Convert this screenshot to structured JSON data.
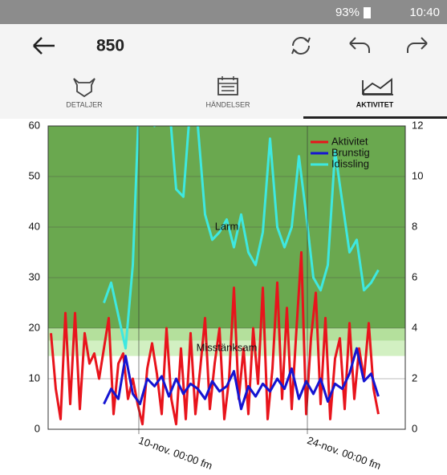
{
  "status": {
    "battery": "93%",
    "time": "10:40"
  },
  "toolbar": {
    "title": "850"
  },
  "tabs": [
    "DETALJER",
    "HÄNDELSER",
    "AKTIVITET"
  ],
  "chart_data": {
    "type": "line",
    "xlim": [
      2.47,
      32.13
    ],
    "xticks": [
      {
        "value": 10,
        "label": "10-nov. 00:00 fm"
      },
      {
        "value": 24,
        "label": "24-nov. 00:00 fm"
      }
    ],
    "ylim": [
      0,
      60
    ],
    "yticks": [
      0,
      10,
      20,
      30,
      40,
      50,
      60
    ],
    "y2lim": [
      0,
      12
    ],
    "y2ticks": [
      0,
      2,
      4,
      6,
      8,
      10,
      12
    ],
    "grid": true,
    "legend": "upper right",
    "bands": [
      {
        "from": 20,
        "to": 60,
        "color": "#6aa84f",
        "label": "Larm"
      },
      {
        "from": 17.5,
        "to": 20,
        "color": "#b4e09c"
      },
      {
        "from": 14.5,
        "to": 17.5,
        "color": "#d2f0c2",
        "label": "Misstänksam"
      }
    ],
    "series": [
      {
        "name": "Aktivitet",
        "color": "#e8141c",
        "x": [
          2.7,
          3.1,
          3.5,
          3.9,
          4.3,
          4.7,
          5.1,
          5.5,
          5.9,
          6.3,
          6.7,
          7.1,
          7.5,
          7.9,
          8.3,
          8.7,
          9.1,
          9.5,
          9.9,
          10.3,
          10.7,
          11.1,
          11.5,
          11.9,
          12.3,
          12.7,
          13.1,
          13.5,
          13.9,
          14.3,
          14.7,
          15.1,
          15.5,
          15.9,
          16.3,
          16.7,
          17.1,
          17.5,
          17.9,
          18.3,
          18.7,
          19.1,
          19.5,
          19.9,
          20.3,
          20.7,
          21.1,
          21.5,
          21.9,
          22.3,
          22.7,
          23.1,
          23.5,
          23.9,
          24.3,
          24.7,
          25.1,
          25.5,
          25.9,
          26.3,
          26.7,
          27.1,
          27.5,
          27.9,
          28.3,
          28.7,
          29.1,
          29.5,
          29.9
        ],
        "values": [
          19,
          8,
          2,
          23,
          5,
          23,
          4,
          19,
          13,
          15,
          10,
          16,
          22,
          3,
          13,
          15,
          6,
          10,
          5,
          1,
          12,
          17,
          11,
          3,
          20,
          6,
          1,
          16,
          2,
          19,
          3,
          12,
          22,
          4,
          13,
          20,
          2,
          10,
          28,
          6,
          16,
          3,
          20,
          9,
          28,
          2,
          12,
          29,
          6,
          24,
          4,
          20,
          35,
          3,
          18,
          27,
          5,
          22,
          2,
          14,
          18,
          4,
          21,
          6,
          16,
          10,
          21,
          8,
          3
        ]
      },
      {
        "name": "Brunstig",
        "color": "#1414d2",
        "axis": "y2",
        "x": [
          7.1,
          7.7,
          8.3,
          8.9,
          9.5,
          10.1,
          10.7,
          11.3,
          11.9,
          12.5,
          13.1,
          13.7,
          14.3,
          14.9,
          15.5,
          16.1,
          16.7,
          17.3,
          17.9,
          18.5,
          19.1,
          19.7,
          20.3,
          20.9,
          21.5,
          22.1,
          22.7,
          23.3,
          23.9,
          24.5,
          25.1,
          25.7,
          26.3,
          26.9,
          27.5,
          28.1,
          28.7,
          29.3,
          29.9
        ],
        "values": [
          1.0,
          1.6,
          1.2,
          2.9,
          1.4,
          1.0,
          2.0,
          1.7,
          2.1,
          1.3,
          2.0,
          1.4,
          1.8,
          1.6,
          1.2,
          1.9,
          1.5,
          1.7,
          2.3,
          0.8,
          1.7,
          1.3,
          1.8,
          1.5,
          2.0,
          1.6,
          2.4,
          1.2,
          1.9,
          1.4,
          2.0,
          1.1,
          1.8,
          1.6,
          2.2,
          3.2,
          1.9,
          2.2,
          1.3
        ]
      },
      {
        "name": "Idissling",
        "color": "#3ee8e0",
        "axis": "y2",
        "x": [
          7.1,
          7.7,
          8.3,
          8.9,
          9.5,
          10.1,
          10.7,
          11.3,
          11.9,
          12.5,
          13.1,
          13.7,
          14.3,
          14.9,
          15.5,
          16.1,
          16.7,
          17.3,
          17.9,
          18.5,
          19.1,
          19.7,
          20.3,
          20.9,
          21.5,
          22.1,
          22.7,
          23.3,
          23.9,
          24.5,
          25.1,
          25.7,
          26.3,
          26.9,
          27.5,
          28.1,
          28.7,
          29.3,
          29.9
        ],
        "values": [
          5.0,
          5.8,
          4.5,
          3.2,
          6.5,
          14,
          14,
          12,
          14,
          13,
          9.5,
          9.2,
          13,
          12,
          8.5,
          7.5,
          7.8,
          8.3,
          7.2,
          8.5,
          7.0,
          6.5,
          7.8,
          11.5,
          8.0,
          7.2,
          8.0,
          10.8,
          8.5,
          6.0,
          5.5,
          6.5,
          11.0,
          9.0,
          7.0,
          7.5,
          5.5,
          5.8,
          6.3
        ]
      }
    ]
  }
}
